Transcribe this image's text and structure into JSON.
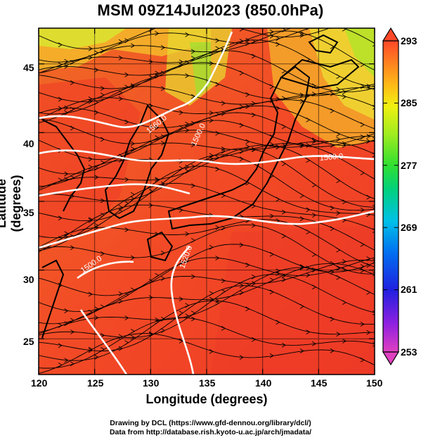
{
  "title": "MSM 09Z14Jul2023 (850.0hPa)",
  "axes": {
    "xlabel": "Longitude (degrees)",
    "ylabel": "Latitude  (degrees)",
    "x_ticks": [
      "120",
      "125",
      "130",
      "135",
      "140",
      "145",
      "150"
    ],
    "y_ticks": [
      "45",
      "40",
      "35",
      "30",
      "25"
    ]
  },
  "map": {
    "lon_range": [
      120,
      150
    ],
    "lat_range": [
      22.4,
      47.6
    ],
    "contour_labels": [
      "1560.0",
      "1500.0",
      "1500.0",
      "1500.0",
      "1520.0",
      "1520.0"
    ]
  },
  "colorbar": {
    "min": 253,
    "max": 293,
    "labels": [
      "293",
      "285",
      "277",
      "269",
      "261",
      "253"
    ],
    "colors": [
      "#e040c0",
      "#9020e0",
      "#2020e0",
      "#0070f0",
      "#00c0e8",
      "#00d080",
      "#30e030",
      "#a0ec20",
      "#f0f010",
      "#ffb818",
      "#ff8020",
      "#ff4828"
    ]
  },
  "footer": {
    "line1": "Drawing by DCL (https://www.gfd-dennou.org/library/dcl/)",
    "line2": "Data from http://database.rish.kyoto-u.ac.jp/arch/jmadata/"
  }
}
